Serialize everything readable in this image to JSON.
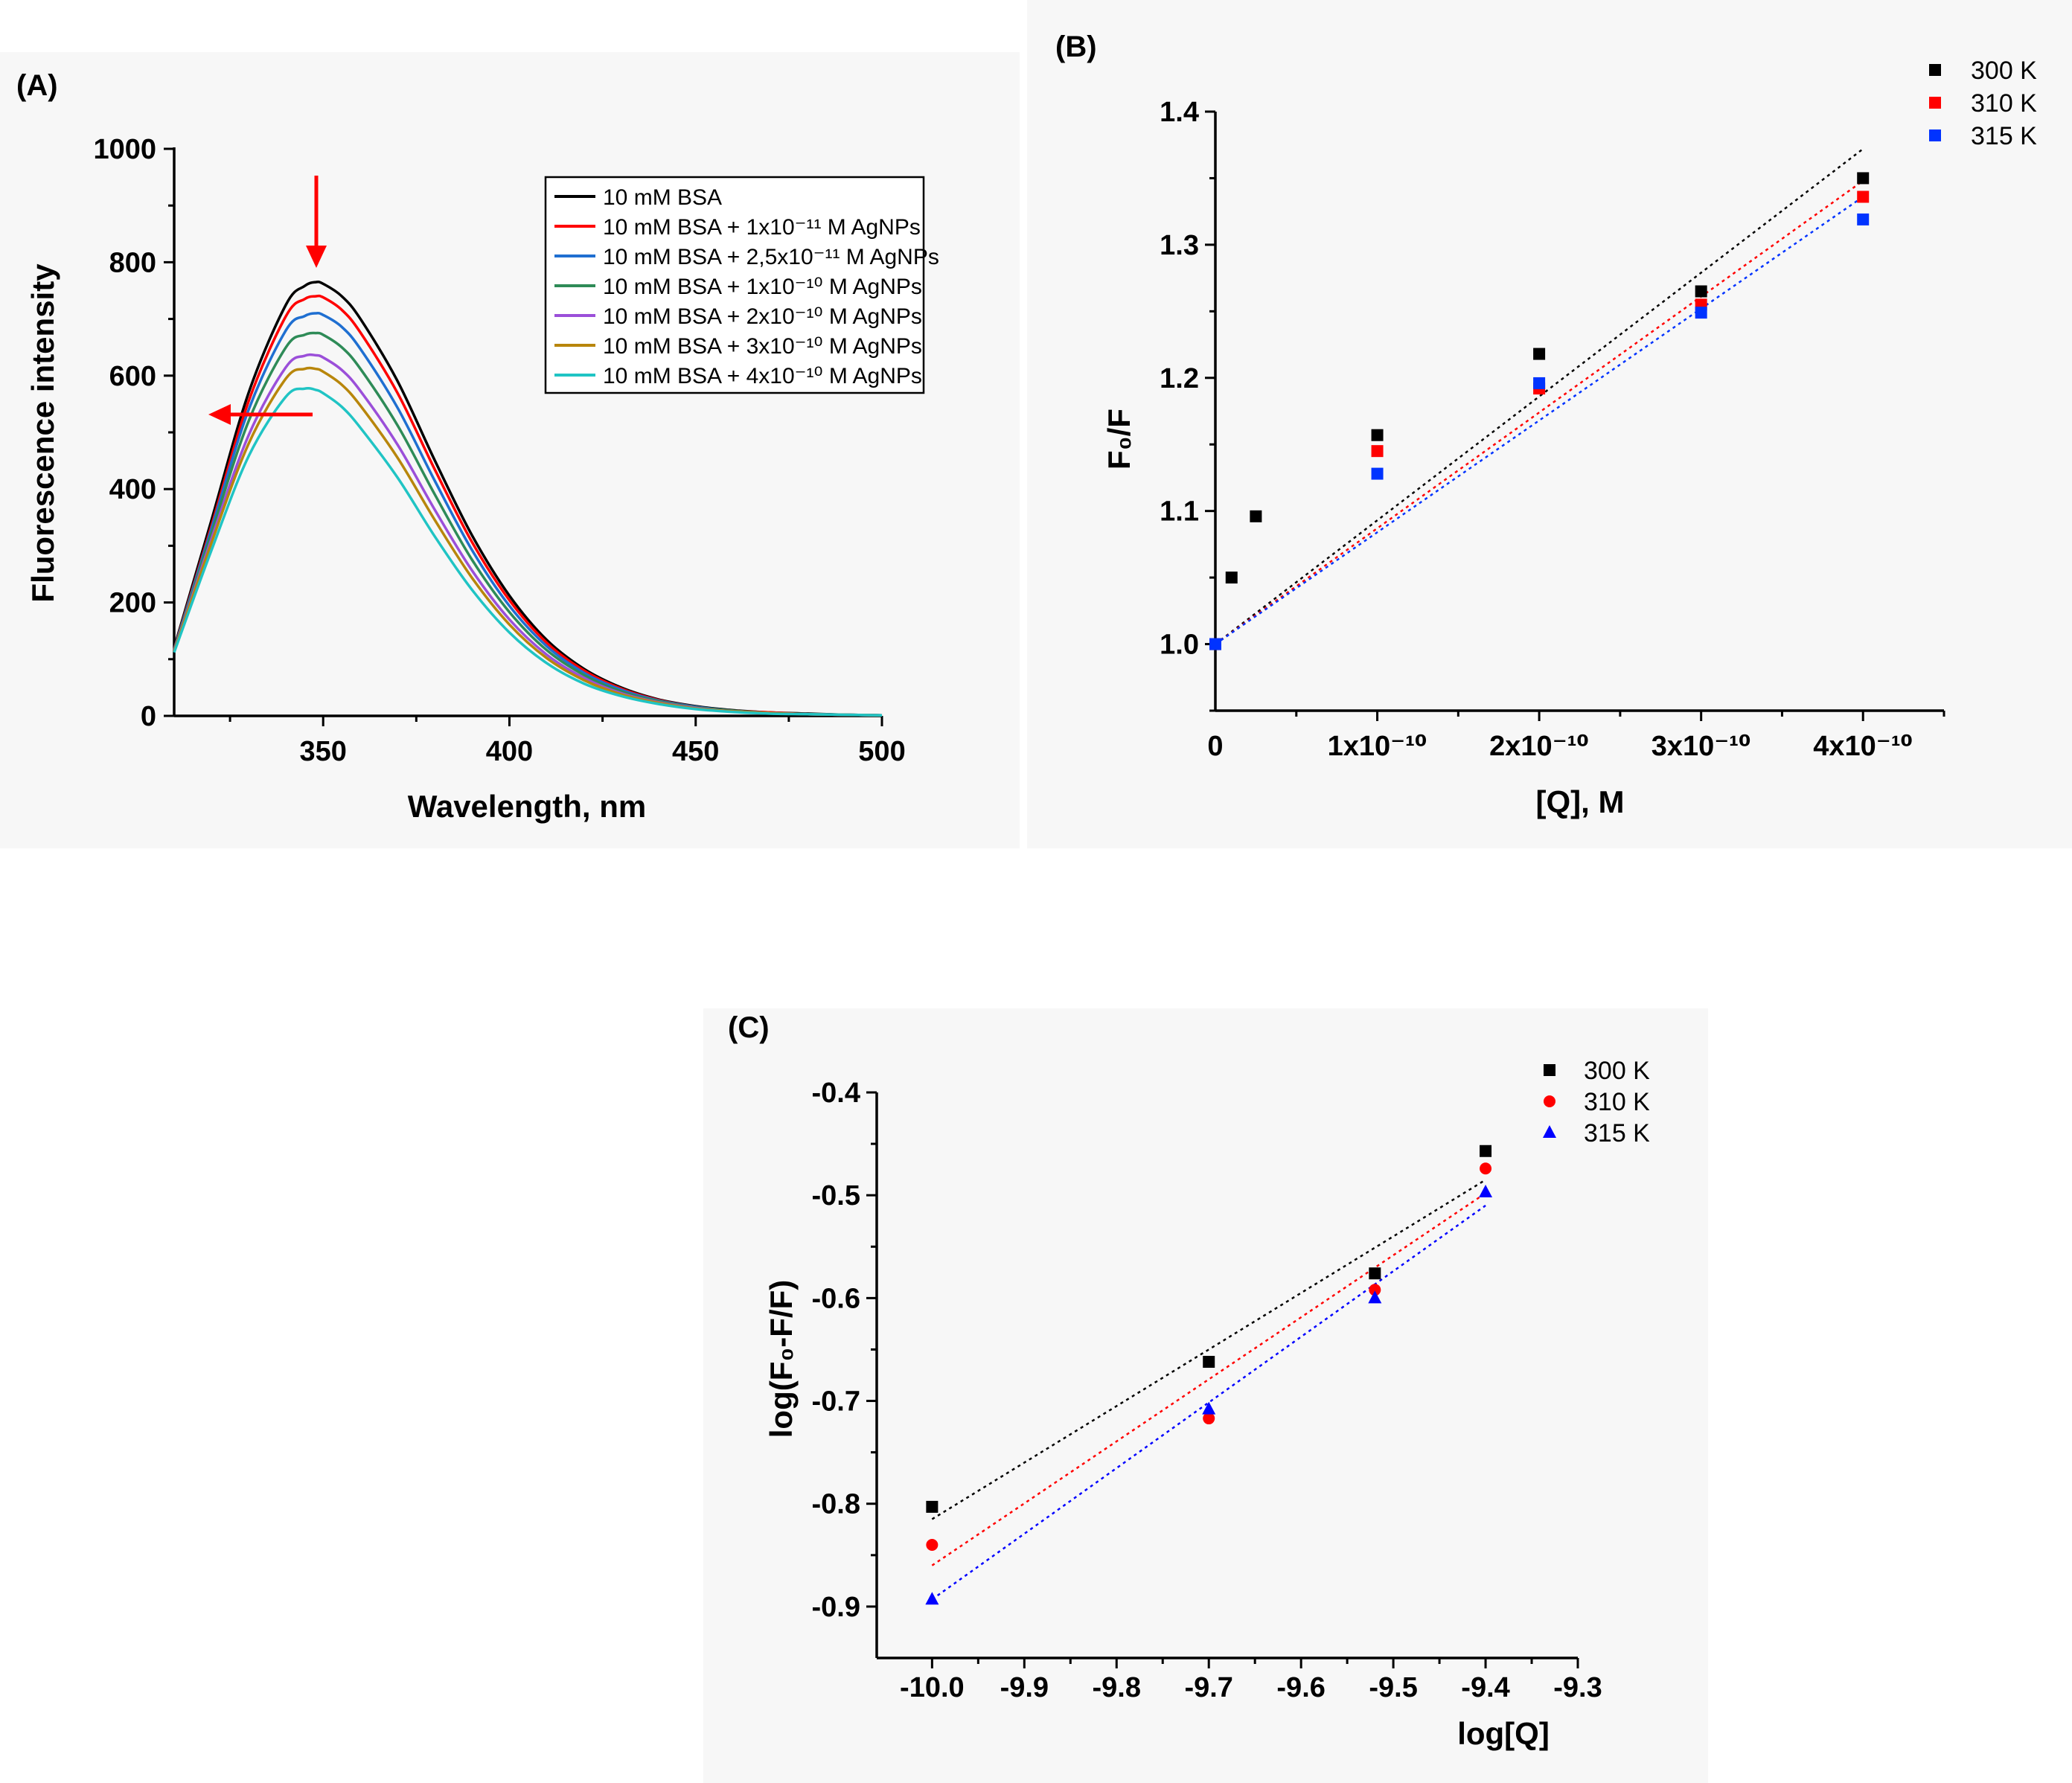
{
  "chart_data": [
    {
      "id": "A",
      "panel_label": "(A)",
      "type": "line",
      "xlabel": "Wavelength, nm",
      "ylabel": "Fluorescence intensity",
      "xlim": [
        310,
        500
      ],
      "ylim": [
        0,
        1000
      ],
      "xticks": [
        "350",
        "400",
        "450",
        "500"
      ],
      "yticks": [
        "0",
        "200",
        "400",
        "600",
        "800",
        "1000"
      ],
      "x": [
        310,
        320,
        330,
        340,
        345,
        348,
        350,
        355,
        360,
        370,
        380,
        390,
        400,
        410,
        420,
        430,
        440,
        450,
        460,
        470,
        480,
        490,
        500
      ],
      "series": [
        {
          "name": "10 mM BSA",
          "color": "#000000",
          "peak_x": 348,
          "values": [
            120,
            345,
            570,
            725,
            758,
            765,
            762,
            740,
            700,
            590,
            450,
            318,
            212,
            134,
            83,
            50,
            29,
            17,
            10,
            6,
            4,
            2,
            1
          ]
        },
        {
          "name": "10 mM BSA + 1x10⁻¹¹ M AgNPs",
          "color": "#ff0000",
          "peak_x": 348,
          "values": [
            118,
            335,
            555,
            705,
            735,
            740,
            738,
            716,
            676,
            569,
            434,
            306,
            204,
            129,
            80,
            48,
            28,
            16,
            9,
            6,
            3,
            2,
            1
          ]
        },
        {
          "name": "10 mM BSA + 2,5x10⁻¹¹ M AgNPs",
          "color": "#1f6fd1",
          "peak_x": 347,
          "values": [
            117,
            330,
            540,
            680,
            705,
            710,
            707,
            686,
            647,
            543,
            414,
            292,
            194,
            123,
            76,
            46,
            27,
            16,
            9,
            5,
            3,
            2,
            1
          ]
        },
        {
          "name": "10 mM BSA + 1x10⁻¹⁰ M AgNPs",
          "color": "#2e8b57",
          "peak_x": 347,
          "values": [
            116,
            322,
            520,
            650,
            672,
            675,
            672,
            650,
            612,
            512,
            390,
            275,
            183,
            116,
            72,
            43,
            26,
            15,
            9,
            5,
            3,
            2,
            1
          ]
        },
        {
          "name": "10 mM BSA + 2x10⁻¹⁰ M AgNPs",
          "color": "#9b4fd9",
          "peak_x": 346,
          "values": [
            115,
            312,
            495,
            615,
            635,
            636,
            632,
            610,
            573,
            478,
            363,
            256,
            170,
            108,
            67,
            40,
            24,
            14,
            8,
            5,
            3,
            2,
            1
          ]
        },
        {
          "name": "10 mM BSA + 3x10⁻¹⁰ M AgNPs",
          "color": "#b8860b",
          "peak_x": 346,
          "values": [
            114,
            305,
            480,
            595,
            612,
            612,
            607,
            584,
            547,
            455,
            345,
            243,
            161,
            102,
            63,
            38,
            23,
            13,
            8,
            5,
            3,
            2,
            1
          ]
        },
        {
          "name": "10 mM BSA + 4x10⁻¹⁰ M AgNPs",
          "color": "#20c4c4",
          "peak_x": 345,
          "values": [
            112,
            292,
            458,
            563,
            577,
            575,
            569,
            545,
            508,
            420,
            316,
            222,
            147,
            93,
            57,
            35,
            21,
            12,
            7,
            4,
            3,
            2,
            1
          ]
        }
      ],
      "annotations": [
        "red arrow down at peak (decreasing intensity)",
        "red arrow left (blue shift)"
      ]
    },
    {
      "id": "B",
      "panel_label": "(B)",
      "type": "scatter",
      "xlabel": "[Q], M",
      "ylabel": "F₀/F",
      "xlim": [
        0,
        4.5e-10
      ],
      "ylim": [
        0.95,
        1.4
      ],
      "xticks": [
        "0",
        "1x10⁻¹⁰",
        "2x10⁻¹⁰",
        "3x10⁻¹⁰",
        "4x10⁻¹⁰"
      ],
      "yticks": [
        "1.0",
        "1.1",
        "1.2",
        "1.3",
        "1.4"
      ],
      "series": [
        {
          "name": "300 K",
          "color": "#000000",
          "marker": "square",
          "points": [
            [
              0,
              1.0
            ],
            [
              1e-11,
              1.05
            ],
            [
              2.5e-11,
              1.096
            ],
            [
              1e-10,
              1.157
            ],
            [
              2e-10,
              1.218
            ],
            [
              3e-10,
              1.265
            ],
            [
              4e-10,
              1.35
            ]
          ],
          "fit": {
            "intercept": 1.0,
            "slope": 930000000.0
          }
        },
        {
          "name": "310 K",
          "color": "#ff0000",
          "marker": "square",
          "points": [
            [
              0,
              1.0
            ],
            [
              1e-10,
              1.145
            ],
            [
              2e-10,
              1.192
            ],
            [
              3e-10,
              1.255
            ],
            [
              4e-10,
              1.336
            ]
          ],
          "fit": {
            "intercept": 1.0,
            "slope": 870000000.0
          }
        },
        {
          "name": "315 K",
          "color": "#0033ff",
          "marker": "square",
          "points": [
            [
              0,
              1.0
            ],
            [
              1e-10,
              1.128
            ],
            [
              2e-10,
              1.196
            ],
            [
              3e-10,
              1.249
            ],
            [
              4e-10,
              1.319
            ]
          ],
          "fit": {
            "intercept": 1.0,
            "slope": 840000000.0
          }
        }
      ],
      "legend": "top-right"
    },
    {
      "id": "C",
      "panel_label": "(C)",
      "type": "scatter",
      "xlabel": "log[Q]",
      "ylabel": "log(F₀-F/F)",
      "xlim": [
        -10.06,
        -9.3
      ],
      "ylim": [
        -0.95,
        -0.4
      ],
      "xticks": [
        "-10.0",
        "-9.9",
        "-9.8",
        "-9.7",
        "-9.6",
        "-9.5",
        "-9.4",
        "-9.3"
      ],
      "yticks": [
        "-0.4",
        "-0.5",
        "-0.6",
        "-0.7",
        "-0.8",
        "-0.9"
      ],
      "series": [
        {
          "name": "300 K",
          "color": "#000000",
          "marker": "square",
          "points": [
            [
              -10.0,
              -0.803
            ],
            [
              -9.7,
              -0.662
            ],
            [
              -9.52,
              -0.576
            ],
            [
              -9.4,
              -0.457
            ]
          ],
          "fit": {
            "x": [
              -10.0,
              -9.4
            ],
            "y": [
              -0.815,
              -0.485
            ]
          }
        },
        {
          "name": "310 K",
          "color": "#ff0000",
          "marker": "circle",
          "points": [
            [
              -10.0,
              -0.84
            ],
            [
              -9.7,
              -0.717
            ],
            [
              -9.52,
              -0.592
            ],
            [
              -9.4,
              -0.474
            ]
          ],
          "fit": {
            "x": [
              -10.0,
              -9.4
            ],
            "y": [
              -0.86,
              -0.498
            ]
          }
        },
        {
          "name": "315 K",
          "color": "#0000ff",
          "marker": "triangle",
          "points": [
            [
              -10.0,
              -0.893
            ],
            [
              -9.7,
              -0.708
            ],
            [
              -9.52,
              -0.6
            ],
            [
              -9.4,
              -0.497
            ]
          ],
          "fit": {
            "x": [
              -10.0,
              -9.4
            ],
            "y": [
              -0.893,
              -0.51
            ]
          }
        }
      ],
      "legend": "top-right"
    }
  ]
}
